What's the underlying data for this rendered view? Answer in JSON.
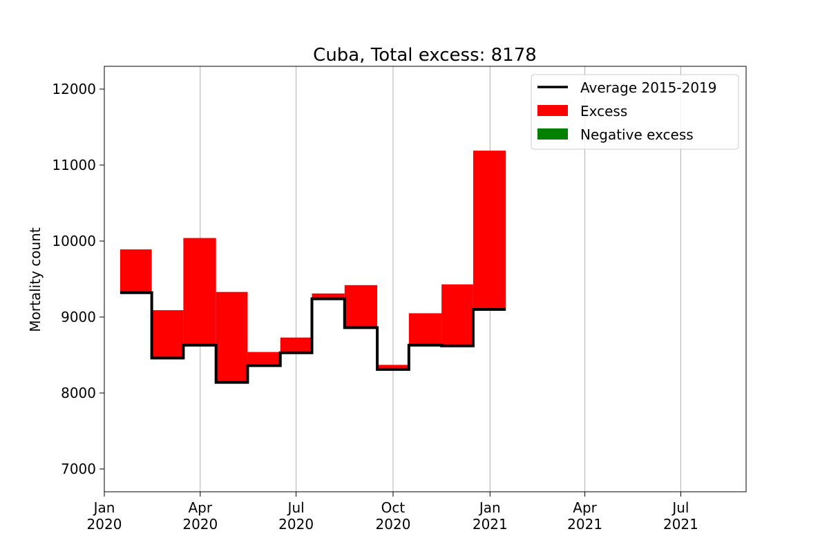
{
  "chart_data": {
    "type": "bar",
    "title": "Cuba, Total excess: 8178",
    "xlabel": "",
    "ylabel": "Mortality count",
    "ylim": [
      6700,
      12300
    ],
    "xlim": [
      "2020-01-01",
      "2021-09-01"
    ],
    "grid": "x-only",
    "legend_position": "top-right",
    "x_ticks": [
      {
        "date": "2020-01-01",
        "line1": "Jan",
        "line2": "2020"
      },
      {
        "date": "2020-04-01",
        "line1": "Apr",
        "line2": "2020"
      },
      {
        "date": "2020-07-01",
        "line1": "Jul",
        "line2": "2020"
      },
      {
        "date": "2020-10-01",
        "line1": "Oct",
        "line2": "2020"
      },
      {
        "date": "2021-01-01",
        "line1": "Jan",
        "line2": "2021"
      },
      {
        "date": "2021-04-01",
        "line1": "Apr",
        "line2": "2021"
      },
      {
        "date": "2021-07-01",
        "line1": "Jul",
        "line2": "2021"
      }
    ],
    "y_ticks": [
      7000,
      8000,
      9000,
      10000,
      11000,
      12000
    ],
    "periods": [
      {
        "start": "2020-01-16",
        "end": "2020-02-15",
        "average": 9320,
        "observed": 9890
      },
      {
        "start": "2020-02-15",
        "end": "2020-03-16",
        "average": 8460,
        "observed": 9090
      },
      {
        "start": "2020-03-16",
        "end": "2020-04-16",
        "average": 8630,
        "observed": 10040
      },
      {
        "start": "2020-04-16",
        "end": "2020-05-16",
        "average": 8140,
        "observed": 9330
      },
      {
        "start": "2020-05-16",
        "end": "2020-06-16",
        "average": 8360,
        "observed": 8540
      },
      {
        "start": "2020-06-16",
        "end": "2020-07-16",
        "average": 8530,
        "observed": 8730
      },
      {
        "start": "2020-07-16",
        "end": "2020-08-16",
        "average": 9240,
        "observed": 9310
      },
      {
        "start": "2020-08-16",
        "end": "2020-09-16",
        "average": 8860,
        "observed": 9420
      },
      {
        "start": "2020-09-16",
        "end": "2020-10-16",
        "average": 8310,
        "observed": 8370
      },
      {
        "start": "2020-10-16",
        "end": "2020-11-16",
        "average": 8630,
        "observed": 9050
      },
      {
        "start": "2020-11-16",
        "end": "2020-12-16",
        "average": 8620,
        "observed": 9430
      },
      {
        "start": "2020-12-16",
        "end": "2021-01-16",
        "average": 9100,
        "observed": 11190
      }
    ],
    "series": [
      {
        "name": "Average 2015-2019",
        "color": "#000000",
        "kind": "step-line"
      },
      {
        "name": "Excess",
        "color": "#ff0000",
        "kind": "bar"
      },
      {
        "name": "Negative excess",
        "color": "#008000",
        "kind": "bar"
      }
    ]
  }
}
